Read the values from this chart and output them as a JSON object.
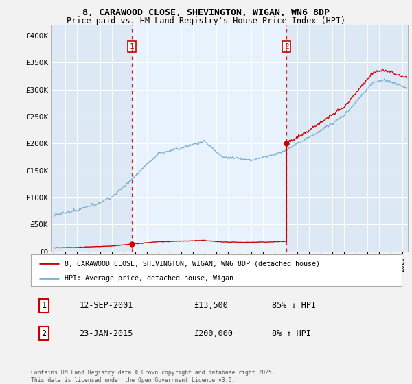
{
  "title_line1": "8, CARAWOOD CLOSE, SHEVINGTON, WIGAN, WN6 8DP",
  "title_line2": "Price paid vs. HM Land Registry's House Price Index (HPI)",
  "fig_bg": "#f2f2f2",
  "plot_bg": "#dce9f5",
  "shade_bg": "#e8f2fc",
  "legend_label_red": "8, CARAWOOD CLOSE, SHEVINGTON, WIGAN, WN6 8DP (detached house)",
  "legend_label_blue": "HPI: Average price, detached house, Wigan",
  "transaction1_date": "12-SEP-2001",
  "transaction1_price": "£13,500",
  "transaction1_hpi": "85% ↓ HPI",
  "transaction2_date": "23-JAN-2015",
  "transaction2_price": "£200,000",
  "transaction2_hpi": "8% ↑ HPI",
  "footer": "Contains HM Land Registry data © Crown copyright and database right 2025.\nThis data is licensed under the Open Government Licence v3.0.",
  "vline1_x": 2001.71,
  "vline2_x": 2015.05,
  "marker1_x": 2001.71,
  "marker1_y": 13500,
  "marker2_x": 2015.05,
  "marker2_y": 200000,
  "ylim": [
    0,
    420000
  ],
  "xlim_start": 1994.8,
  "xlim_end": 2025.5,
  "red_color": "#cc0000",
  "blue_color": "#7ab0d4",
  "vline_color": "#cc0000",
  "grid_color": "#ffffff",
  "title_fontsize": 9.5,
  "subtitle_fontsize": 8.5
}
